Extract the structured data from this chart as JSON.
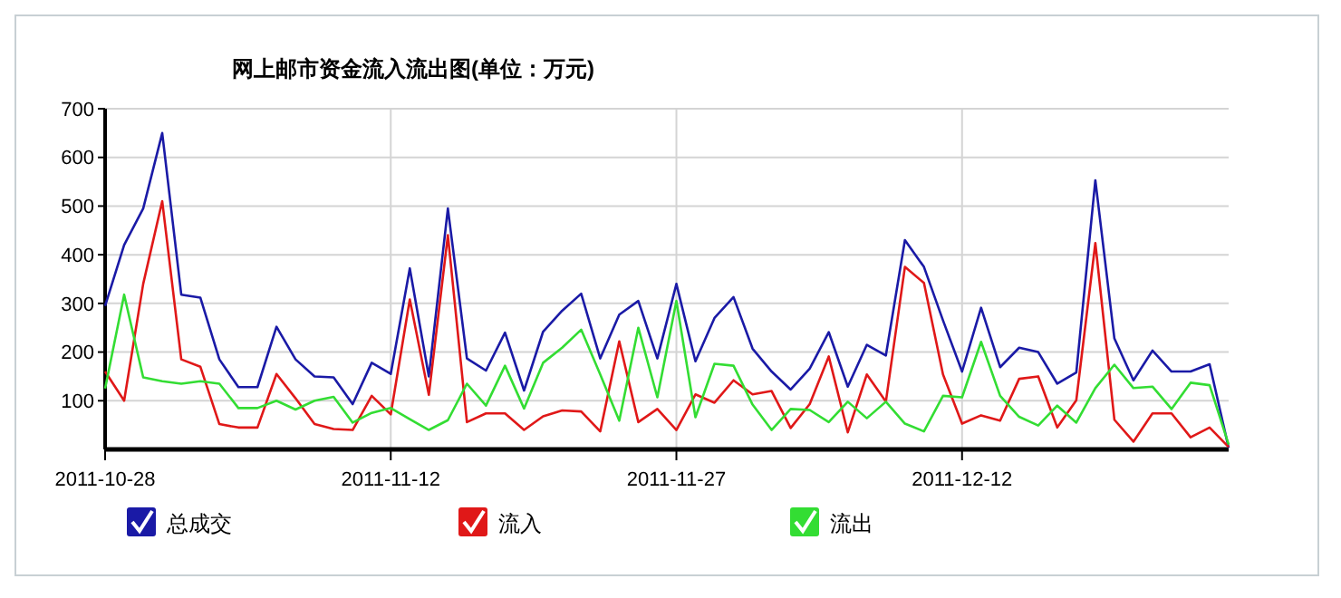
{
  "chart_data": {
    "type": "line",
    "title": "网上邮市资金流入流出图(单位：万元)",
    "x": [
      "2011-10-28",
      "2011-10-29",
      "2011-10-30",
      "2011-10-31",
      "2011-11-01",
      "2011-11-02",
      "2011-11-03",
      "2011-11-04",
      "2011-11-05",
      "2011-11-06",
      "2011-11-07",
      "2011-11-08",
      "2011-11-09",
      "2011-11-10",
      "2011-11-11",
      "2011-11-12",
      "2011-11-13",
      "2011-11-14",
      "2011-11-15",
      "2011-11-16",
      "2011-11-17",
      "2011-11-18",
      "2011-11-19",
      "2011-11-20",
      "2011-11-21",
      "2011-11-22",
      "2011-11-23",
      "2011-11-24",
      "2011-11-25",
      "2011-11-26",
      "2011-11-27",
      "2011-11-28",
      "2011-11-29",
      "2011-11-30",
      "2011-12-01",
      "2011-12-02",
      "2011-12-03",
      "2011-12-04",
      "2011-12-05",
      "2011-12-06",
      "2011-12-07",
      "2011-12-08",
      "2011-12-09",
      "2011-12-10",
      "2011-12-11",
      "2011-12-12",
      "2011-12-13",
      "2011-12-14",
      "2011-12-15",
      "2011-12-16",
      "2011-12-17",
      "2011-12-18",
      "2011-12-19",
      "2011-12-20",
      "2011-12-21",
      "2011-12-22",
      "2011-12-23",
      "2011-12-24",
      "2011-12-25",
      "2011-12-26"
    ],
    "xlim": [
      "2011-10-28",
      "2011-12-26"
    ],
    "xticks": [
      "2011-10-28",
      "2011-11-12",
      "2011-11-27",
      "2011-12-12"
    ],
    "ylim": [
      0,
      700
    ],
    "yticks": [
      100,
      200,
      300,
      400,
      500,
      600,
      700
    ],
    "grid": true,
    "legend": "bottom",
    "marker": "none",
    "line_style": "solid",
    "series": [
      {
        "name": "总成交",
        "color": "#1a1aa6",
        "values": [
          295,
          420,
          495,
          650,
          318,
          312,
          185,
          128,
          128,
          252,
          185,
          150,
          148,
          93,
          178,
          155,
          372,
          150,
          495,
          187,
          162,
          240,
          121,
          242,
          285,
          320,
          187,
          277,
          305,
          187,
          340,
          181,
          270,
          313,
          207,
          160,
          123,
          166,
          241,
          129,
          215,
          193,
          430,
          375,
          265,
          160,
          291,
          169,
          209,
          200,
          135,
          158,
          553,
          228,
          142,
          203,
          160,
          160,
          175,
          3
        ]
      },
      {
        "name": "流入",
        "color": "#e01818",
        "values": [
          160,
          100,
          340,
          510,
          185,
          170,
          52,
          45,
          45,
          155,
          105,
          52,
          42,
          40,
          110,
          72,
          308,
          112,
          440,
          56,
          74,
          74,
          40,
          68,
          80,
          78,
          37,
          222,
          56,
          83,
          40,
          113,
          96,
          142,
          113,
          120,
          44,
          93,
          191,
          35,
          154,
          98,
          375,
          342,
          154,
          53,
          70,
          59,
          145,
          150,
          45,
          101,
          424,
          61,
          16,
          74,
          74,
          25,
          45,
          5
        ]
      },
      {
        "name": "流出",
        "color": "#33dd33",
        "values": [
          125,
          318,
          148,
          140,
          135,
          140,
          135,
          85,
          85,
          100,
          82,
          100,
          108,
          55,
          75,
          85,
          62,
          40,
          60,
          135,
          90,
          172,
          84,
          178,
          209,
          246,
          154,
          59,
          250,
          107,
          305,
          66,
          176,
          172,
          92,
          40,
          83,
          81,
          56,
          98,
          64,
          98,
          53,
          37,
          110,
          107,
          221,
          110,
          67,
          49,
          90,
          55,
          126,
          174,
          126,
          129,
          83,
          137,
          132,
          10
        ]
      }
    ]
  }
}
